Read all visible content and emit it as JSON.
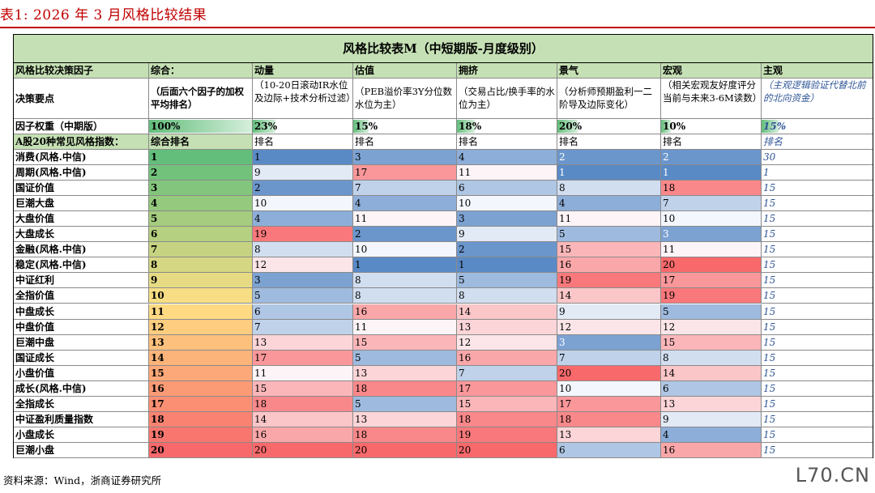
{
  "caption": "表1:  2026 年 3 月风格比较结果",
  "table_title": "风格比较表M（中短期版-月度级别）",
  "header": [
    "风格比较决策因子",
    "综合：",
    "动量",
    "估值",
    "拥挤",
    "景气",
    "宏观",
    "主观"
  ],
  "decision": {
    "label": "决策要点",
    "items": [
      "（后面六个因子的加权平均排名）",
      "（10-20日滚动IR水位及边际+技术分析过滤）",
      "（PEB溢价率3Y分位数水位为主）",
      "（交易占比/换手率的水位为主）",
      "（分析师预期盈利一二阶导及边际变化）",
      "（相关宏观友好度评分当前与未来3-6M读数）",
      "（主观逻辑验证代替北前的北向资金）"
    ]
  },
  "weights": {
    "label": "因子权重（中期版）",
    "values": [
      "100%",
      "23%",
      "15%",
      "18%",
      "20%",
      "10%",
      "15%"
    ],
    "fractions": [
      1.0,
      0.23,
      0.15,
      0.18,
      0.2,
      0.1,
      0.15
    ]
  },
  "subheader": {
    "label": "A股20种常见风格指数：",
    "items": [
      "综合排名",
      "排名",
      "排名",
      "排名",
      "排名",
      "排名",
      "排名"
    ]
  },
  "rows": [
    {
      "name": "消费(风格.中信)",
      "ranks": [
        "1",
        "1",
        "3",
        "4",
        "2",
        "2",
        "30"
      ]
    },
    {
      "name": "周期(风格.中信)",
      "ranks": [
        "2",
        "9",
        "17",
        "11",
        "1",
        "1",
        "1"
      ]
    },
    {
      "name": "国证价值",
      "ranks": [
        "3",
        "2",
        "7",
        "6",
        "8",
        "18",
        "15"
      ]
    },
    {
      "name": "巨潮大盘",
      "ranks": [
        "4",
        "10",
        "4",
        "10",
        "4",
        "7",
        "15"
      ]
    },
    {
      "name": "大盘价值",
      "ranks": [
        "5",
        "4",
        "11",
        "3",
        "11",
        "10",
        "15"
      ]
    },
    {
      "name": "大盘成长",
      "ranks": [
        "6",
        "19",
        "2",
        "9",
        "5",
        "3",
        "15"
      ]
    },
    {
      "name": "金融(风格.中信)",
      "ranks": [
        "7",
        "8",
        "10",
        "2",
        "15",
        "11",
        "15"
      ]
    },
    {
      "name": "稳定(风格.中信)",
      "ranks": [
        "8",
        "12",
        "1",
        "1",
        "16",
        "20",
        "15"
      ]
    },
    {
      "name": "中证红利",
      "ranks": [
        "9",
        "3",
        "8",
        "5",
        "19",
        "17",
        "15"
      ]
    },
    {
      "name": "全指价值",
      "ranks": [
        "10",
        "5",
        "8",
        "8",
        "14",
        "19",
        "15"
      ]
    },
    {
      "name": "中盘成长",
      "ranks": [
        "11",
        "6",
        "16",
        "14",
        "9",
        "5",
        "15"
      ]
    },
    {
      "name": "中盘价值",
      "ranks": [
        "12",
        "7",
        "11",
        "13",
        "12",
        "12",
        "15"
      ]
    },
    {
      "name": "巨潮中盘",
      "ranks": [
        "13",
        "13",
        "15",
        "12",
        "3",
        "15",
        "15"
      ]
    },
    {
      "name": "国证成长",
      "ranks": [
        "14",
        "17",
        "5",
        "16",
        "7",
        "8",
        "15"
      ]
    },
    {
      "name": "小盘价值",
      "ranks": [
        "15",
        "11",
        "13",
        "7",
        "20",
        "14",
        "15"
      ]
    },
    {
      "name": "成长(风格.中信)",
      "ranks": [
        "16",
        "15",
        "18",
        "17",
        "10",
        "6",
        "15"
      ]
    },
    {
      "name": "全指成长",
      "ranks": [
        "17",
        "18",
        "5",
        "15",
        "17",
        "13",
        "15"
      ]
    },
    {
      "name": "中证盈利质量指数",
      "ranks": [
        "18",
        "14",
        "13",
        "18",
        "18",
        "9",
        "15"
      ]
    },
    {
      "name": "小盘成长",
      "ranks": [
        "19",
        "16",
        "18",
        "19",
        "13",
        "4",
        "15"
      ]
    },
    {
      "name": "巨潮小盘",
      "ranks": [
        "20",
        "20",
        "20",
        "20",
        "6",
        "16",
        "15"
      ]
    }
  ],
  "footer": "资料来源：Wind，浙商证券研究所",
  "watermark": "L70.CN",
  "colors": {
    "header_bg": "#c5e0b4",
    "caption": "#c00000",
    "rank_best": "#63be7b",
    "rank_mid": "#ffe084",
    "rank_worst": "#f8696b",
    "factor_best": "#5a8ac6",
    "factor_mid": "#fcfcff",
    "factor_worst": "#f8696b",
    "subjective_text": "#2f5597"
  }
}
